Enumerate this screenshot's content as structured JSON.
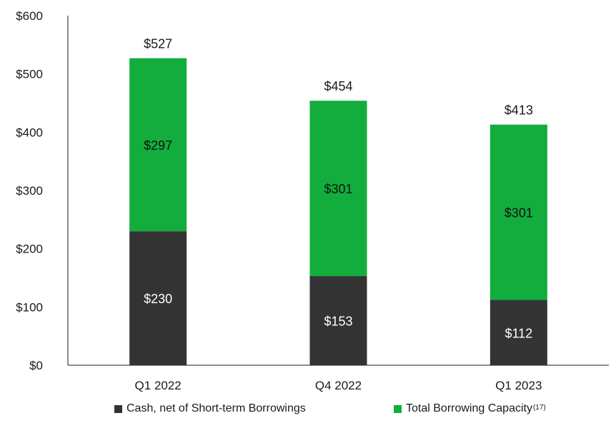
{
  "chart_data": {
    "type": "bar",
    "stacked": true,
    "categories": [
      "Q1 2022",
      "Q4 2022",
      "Q1 2023"
    ],
    "series": [
      {
        "name": "Cash, net of Short-term Borrowings",
        "values": [
          230,
          153,
          112
        ],
        "color": "#333333",
        "labels": [
          "$230",
          "$153",
          "$112"
        ]
      },
      {
        "name": "Total Borrowing Capacity",
        "footnote": "(17)",
        "values": [
          297,
          301,
          301
        ],
        "color": "#12ad3c",
        "labels": [
          "$297",
          "$301",
          "$301"
        ]
      }
    ],
    "totals": [
      "$527",
      "$454",
      "$413"
    ],
    "ylim": [
      0,
      600
    ],
    "yticks": [
      "$0",
      "$100",
      "$200",
      "$300",
      "$400",
      "$500",
      "$600"
    ],
    "grid": false,
    "legend_position": "bottom"
  }
}
